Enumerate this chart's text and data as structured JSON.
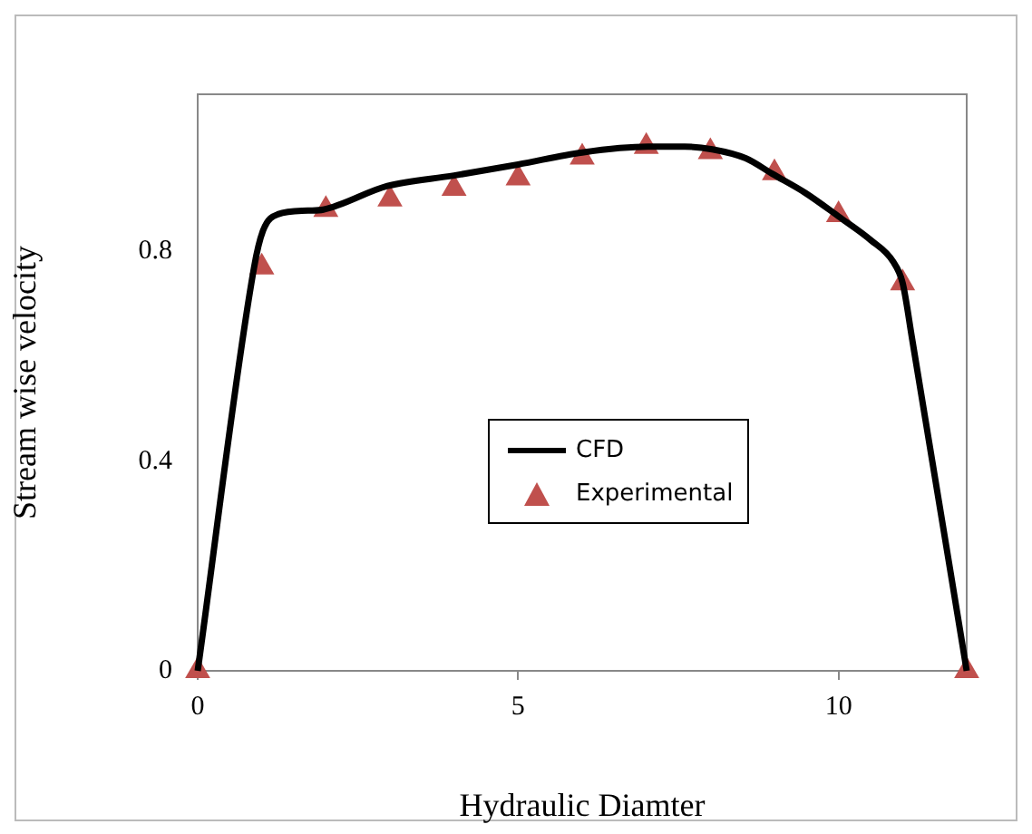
{
  "chart_data": {
    "type": "line",
    "xlabel": "Hydraulic Diamter",
    "ylabel": "Stream wise velocity",
    "xlim": [
      0,
      12
    ],
    "ylim": [
      0,
      1.1
    ],
    "xticks": [
      0,
      5,
      10
    ],
    "yticks": [
      0,
      0.4,
      0.8
    ],
    "grid": false,
    "legend": "center",
    "series": [
      {
        "name": "CFD",
        "color": "#000000",
        "marker": "none",
        "line_style": "solid",
        "x": [
          0,
          0.88,
          1.02,
          1.25,
          1.72,
          1.96,
          2.96,
          4.0,
          5.0,
          6.0,
          7.03,
          7.6,
          8.03,
          8.55,
          8.97,
          9.48,
          10.0,
          10.5,
          10.85,
          11.0,
          11.15,
          12
        ],
        "values": [
          0,
          0.77,
          0.84,
          0.871,
          0.878,
          0.88,
          0.925,
          0.945,
          0.966,
          0.989,
          1.0,
          1.0,
          0.995,
          0.978,
          0.948,
          0.912,
          0.867,
          0.822,
          0.781,
          0.74,
          0.632,
          0
        ]
      },
      {
        "name": "Experimental",
        "type": "scatter",
        "color": "#c0504d",
        "marker": "triangle",
        "x": [
          0,
          1,
          2,
          3,
          4,
          5,
          6,
          7,
          8,
          9,
          10,
          11,
          12
        ],
        "values": [
          0,
          0.77,
          0.88,
          0.9,
          0.92,
          0.94,
          0.98,
          1.0,
          0.99,
          0.95,
          0.87,
          0.74,
          0
        ]
      }
    ]
  }
}
